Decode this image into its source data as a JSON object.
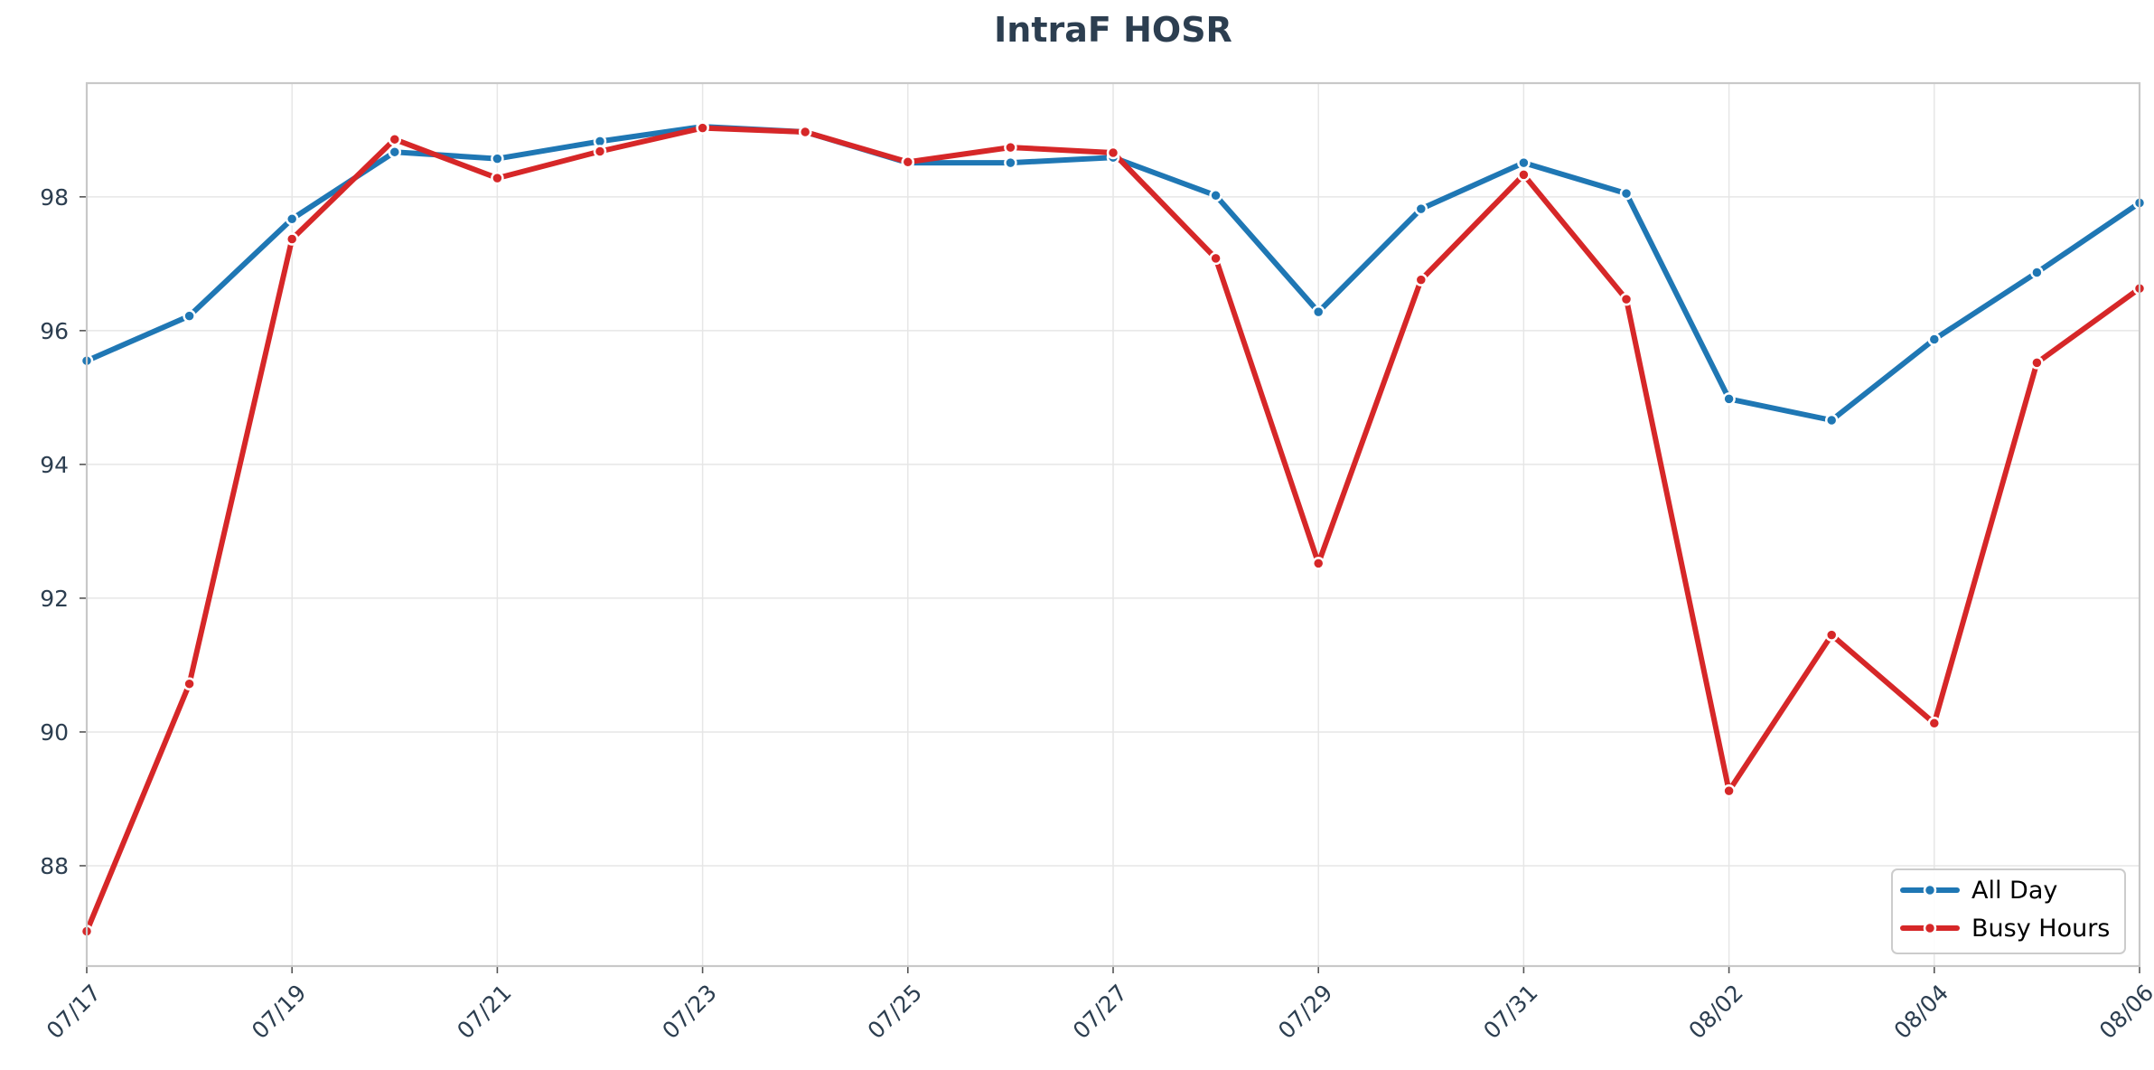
{
  "chart_data": {
    "type": "line",
    "title": "IntraF HOSR",
    "xlabel": "",
    "ylabel": "",
    "x": [
      "07/17",
      "07/18",
      "07/19",
      "07/20",
      "07/21",
      "07/22",
      "07/23",
      "07/24",
      "07/25",
      "07/26",
      "07/27",
      "07/28",
      "07/29",
      "07/30",
      "07/31",
      "08/01",
      "08/02",
      "08/03",
      "08/04",
      "08/05",
      "08/06"
    ],
    "x_tick_labels": [
      "07/17",
      "07/19",
      "07/21",
      "07/23",
      "07/25",
      "07/27",
      "07/29",
      "07/31",
      "08/02",
      "08/04",
      "08/06"
    ],
    "y_tick_labels": [
      "88",
      "90",
      "92",
      "94",
      "96",
      "98"
    ],
    "ylim": [
      86.5,
      99.7
    ],
    "grid": true,
    "legend_position": "bottom-right",
    "series": [
      {
        "name": "All Day",
        "color": "#1f77b4",
        "values": [
          95.55,
          96.22,
          97.67,
          98.67,
          98.57,
          98.83,
          99.05,
          98.97,
          98.51,
          98.51,
          98.59,
          98.02,
          96.28,
          97.82,
          98.51,
          98.05,
          94.98,
          94.66,
          95.87,
          96.87,
          97.91
        ]
      },
      {
        "name": "Busy Hours",
        "color": "#d62728",
        "values": [
          87.02,
          90.72,
          97.37,
          98.86,
          98.28,
          98.68,
          99.03,
          98.97,
          98.52,
          98.74,
          98.66,
          97.08,
          92.52,
          96.76,
          98.33,
          96.47,
          89.12,
          91.45,
          90.13,
          95.52,
          96.63
        ]
      }
    ]
  }
}
